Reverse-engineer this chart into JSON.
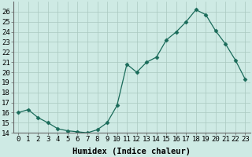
{
  "x": [
    0,
    1,
    2,
    3,
    4,
    5,
    6,
    7,
    8,
    9,
    10,
    11,
    12,
    13,
    14,
    15,
    16,
    17,
    18,
    19,
    20,
    21,
    22,
    23
  ],
  "y": [
    16.0,
    16.3,
    15.5,
    15.0,
    14.4,
    14.2,
    14.1,
    14.0,
    14.3,
    15.0,
    16.7,
    20.8,
    20.0,
    21.0,
    21.5,
    23.2,
    24.0,
    25.0,
    26.2,
    25.7,
    24.1,
    22.8,
    21.2,
    19.3
  ],
  "line_color": "#1a6b5a",
  "marker": "D",
  "marker_size": 2.5,
  "bg_color": "#ceeae4",
  "grid_color": "#aac8c0",
  "xlabel": "Humidex (Indice chaleur)",
  "xlim": [
    -0.5,
    23.5
  ],
  "ylim": [
    14,
    27
  ],
  "yticks": [
    14,
    15,
    16,
    17,
    18,
    19,
    20,
    21,
    22,
    23,
    24,
    25,
    26
  ],
  "xtick_labels": [
    "0",
    "1",
    "2",
    "3",
    "4",
    "5",
    "6",
    "7",
    "8",
    "9",
    "10",
    "11",
    "12",
    "13",
    "14",
    "15",
    "16",
    "17",
    "18",
    "19",
    "20",
    "21",
    "22",
    "23"
  ],
  "xlabel_fontsize": 7.5,
  "tick_fontsize": 6.5
}
